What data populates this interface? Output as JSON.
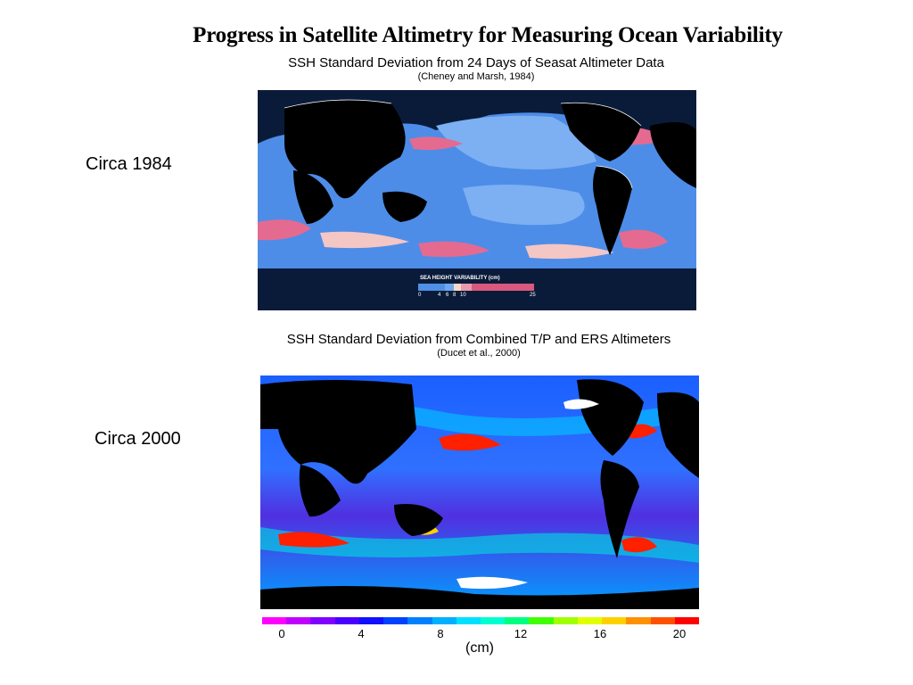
{
  "slide": {
    "title": "Progress in Satellite Altimetry for Measuring Ocean Variability"
  },
  "panel_1984": {
    "era_label": "Circa 1984",
    "map_title": "SSH Standard Deviation from 24 Days of Seasat Altimeter Data",
    "citation": "(Cheney and Marsh, 1984)",
    "legend": {
      "title": "SEA HEIGHT VARIABILITY (cm)",
      "ticks": [
        "0",
        "4",
        "6",
        "8",
        "10",
        "25"
      ],
      "colors": [
        "#4f8fe6",
        "#6fa6f0",
        "#f7d9c8",
        "#e79aae",
        "#d9587e"
      ]
    },
    "colors": {
      "ocean": "#4d8de8",
      "ocean_light": "#7cb0f2",
      "land": "#000000",
      "frame": "#0a1b3a",
      "high": "#e56a90",
      "mid": "#f4c6c4"
    }
  },
  "panel_2000": {
    "era_label": "Circa 2000",
    "map_title": "SSH Standard Deviation from Combined T/P and ERS Altimeters",
    "citation": "(Ducet et al., 2000)",
    "colorbar": {
      "ticks": [
        "0",
        "4",
        "8",
        "12",
        "16",
        "20"
      ],
      "unit": "(cm)",
      "colors": [
        "#ff00ff",
        "#c000ff",
        "#8000ff",
        "#4a00ff",
        "#1010ff",
        "#0040ff",
        "#0080ff",
        "#00b0ff",
        "#00e0ff",
        "#00ffd0",
        "#00ff80",
        "#40ff00",
        "#a0ff00",
        "#e0ff00",
        "#ffd000",
        "#ff9000",
        "#ff5000",
        "#ff0000"
      ]
    },
    "colors": {
      "ocean": "#2050ff",
      "land": "#000000",
      "ice": "#ffffff"
    }
  }
}
